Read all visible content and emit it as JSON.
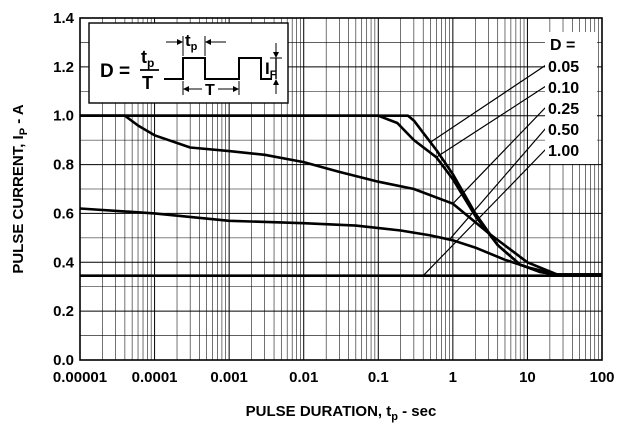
{
  "chart_data": {
    "type": "line",
    "xlabel_main": "PULSE DURATION, t",
    "xlabel_sub": "p",
    "xlabel_rest": " - sec",
    "ylabel_main": "PULSE CURRENT, I",
    "ylabel_sub": "P",
    "ylabel_rest": " - A",
    "xscale": "log",
    "xlim": [
      1e-05,
      100
    ],
    "ylim": [
      0.0,
      1.4
    ],
    "grid": true,
    "x_tick_labels": [
      "0.00001",
      "0.0001",
      "0.001",
      "0.01",
      "0.1",
      "1",
      "10",
      "100"
    ],
    "y_tick_labels": [
      "0.0",
      "0.2",
      "0.4",
      "0.6",
      "0.8",
      "1.0",
      "1.2",
      "1.4"
    ],
    "legend_title": "D =",
    "series": [
      {
        "name": "0.05",
        "x": [
          1e-05,
          0.25,
          0.3,
          0.4,
          0.6,
          1,
          2,
          4,
          8,
          15,
          25,
          100
        ],
        "y": [
          1.0,
          1.0,
          0.98,
          0.93,
          0.86,
          0.76,
          0.6,
          0.47,
          0.39,
          0.36,
          0.35,
          0.35
        ]
      },
      {
        "name": "0.10",
        "x": [
          1e-05,
          0.1,
          0.18,
          0.3,
          0.6,
          1,
          2,
          4,
          8,
          15,
          25,
          100
        ],
        "y": [
          1.0,
          1.0,
          0.97,
          0.9,
          0.83,
          0.74,
          0.59,
          0.47,
          0.39,
          0.36,
          0.35,
          0.35
        ]
      },
      {
        "name": "0.25",
        "x": [
          1e-05,
          4e-05,
          6e-05,
          0.0001,
          0.0003,
          0.001,
          0.003,
          0.01,
          0.03,
          0.1,
          0.3,
          1,
          3,
          10,
          25,
          100
        ],
        "y": [
          1.0,
          1.0,
          0.96,
          0.92,
          0.87,
          0.855,
          0.84,
          0.81,
          0.77,
          0.73,
          0.7,
          0.64,
          0.52,
          0.4,
          0.35,
          0.35
        ]
      },
      {
        "name": "0.50",
        "x": [
          1e-05,
          0.0001,
          0.001,
          0.01,
          0.05,
          0.2,
          0.5,
          1,
          2,
          5,
          10,
          25,
          100
        ],
        "y": [
          0.62,
          0.6,
          0.57,
          0.56,
          0.55,
          0.53,
          0.51,
          0.49,
          0.46,
          0.41,
          0.38,
          0.35,
          0.35
        ]
      },
      {
        "name": "1.00",
        "x": [
          1e-05,
          100
        ],
        "y": [
          0.345,
          0.345
        ]
      }
    ],
    "inset": {
      "D": "D =",
      "tp": "t",
      "tp_sub": "p",
      "T": "T",
      "IF": "I",
      "IF_sub": "F"
    }
  }
}
